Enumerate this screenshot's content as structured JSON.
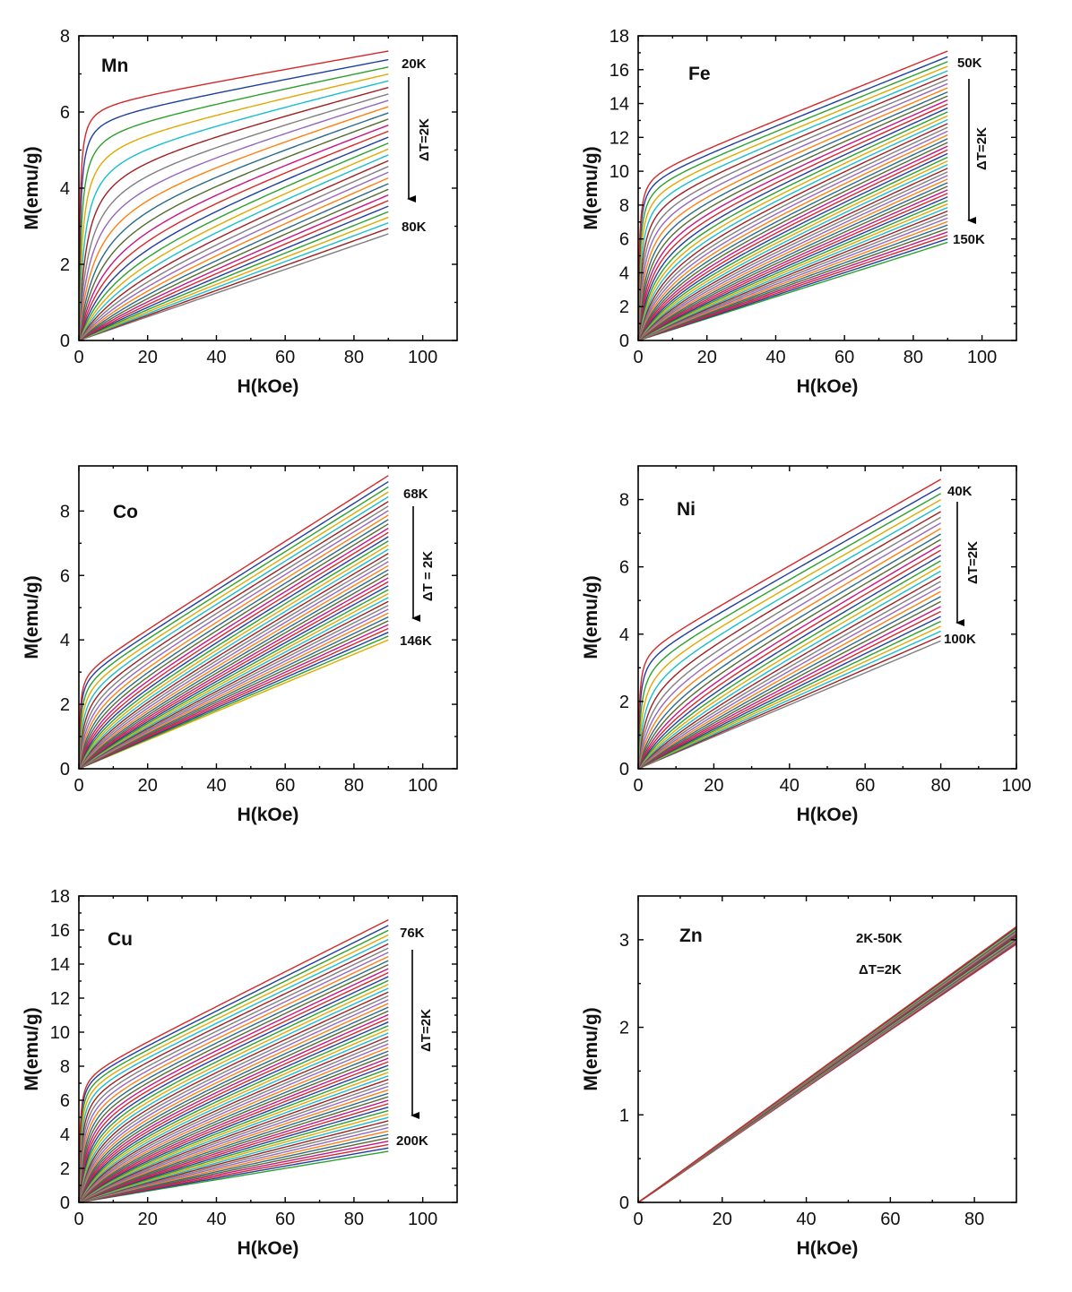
{
  "chart_data": [
    {
      "type": "line",
      "panel": "Mn",
      "xlabel": "H(kOe)",
      "ylabel": "M(emu/g)",
      "xlim": [
        0,
        110
      ],
      "ylim": [
        0,
        8
      ],
      "xticks": [
        "0",
        "20",
        "40",
        "60",
        "80",
        "100"
      ],
      "yticks": [
        "0",
        "2",
        "4",
        "6",
        "8"
      ],
      "x_max_data": 90,
      "temperature_range": [
        "20K",
        "80K"
      ],
      "step_label": "ΔT=2K",
      "num_curves": 31,
      "curve_top": {
        "temperature": "20K",
        "M_at_0": 6.2,
        "M_at_90": 7.6
      },
      "curve_bottom": {
        "temperature": "80K",
        "M_at_90": 2.8
      },
      "annotations": [
        "20K",
        "80K",
        "ΔT=2K"
      ]
    },
    {
      "type": "line",
      "panel": "Fe",
      "xlabel": "H(kOe)",
      "ylabel": "M(emu/g)",
      "xlim": [
        0,
        110
      ],
      "ylim": [
        0,
        18
      ],
      "xticks": [
        "0",
        "20",
        "40",
        "60",
        "80",
        "100"
      ],
      "yticks": [
        "0",
        "2",
        "4",
        "6",
        "8",
        "10",
        "12",
        "14",
        "16",
        "18"
      ],
      "x_max_data": 90,
      "temperature_range": [
        "50K",
        "150K"
      ],
      "step_label": "ΔT=2K",
      "num_curves": 51,
      "curve_top": {
        "temperature": "50K",
        "M_at_0": 9.8,
        "M_at_90": 17.1
      },
      "curve_bottom": {
        "temperature": "150K",
        "M_at_90": 5.8
      },
      "annotations": [
        "50K",
        "150K",
        "ΔT=2K"
      ]
    },
    {
      "type": "line",
      "panel": "Co",
      "xlabel": "H(kOe)",
      "ylabel": "M(emu/g)",
      "xlim": [
        0,
        110
      ],
      "ylim": [
        0,
        9.4
      ],
      "xticks": [
        "0",
        "20",
        "40",
        "60",
        "80",
        "100"
      ],
      "yticks": [
        "0",
        "2",
        "4",
        "6",
        "8"
      ],
      "x_max_data": 90,
      "temperature_range": [
        "68K",
        "146K"
      ],
      "step_label": "ΔT = 2K",
      "num_curves": 40,
      "curve_top": {
        "temperature": "68K",
        "M_at_0": 3.0,
        "M_at_90": 9.1
      },
      "curve_bottom": {
        "temperature": "146K",
        "M_at_90": 4.0
      },
      "annotations": [
        "68K",
        "146K",
        "ΔT = 2K"
      ]
    },
    {
      "type": "line",
      "panel": "Ni",
      "xlabel": "H(kOe)",
      "ylabel": "M(emu/g)",
      "xlim": [
        0,
        100
      ],
      "ylim": [
        0,
        9
      ],
      "xticks": [
        "0",
        "20",
        "40",
        "60",
        "80",
        "100"
      ],
      "yticks": [
        "0",
        "2",
        "4",
        "6",
        "8"
      ],
      "x_max_data": 80,
      "temperature_range": [
        "40K",
        "100K"
      ],
      "step_label": "ΔT=2K",
      "num_curves": 31,
      "curve_top": {
        "temperature": "40K",
        "M_at_0": 3.5,
        "M_at_80": 8.6
      },
      "curve_bottom": {
        "temperature": "100K",
        "M_at_80": 3.8
      },
      "annotations": [
        "40K",
        "100K",
        "ΔT=2K"
      ]
    },
    {
      "type": "line",
      "panel": "Cu",
      "xlabel": "H(kOe)",
      "ylabel": "M(emu/g)",
      "xlim": [
        0,
        110
      ],
      "ylim": [
        0,
        18
      ],
      "xticks": [
        "0",
        "20",
        "40",
        "60",
        "80",
        "100"
      ],
      "yticks": [
        "0",
        "2",
        "4",
        "6",
        "8",
        "10",
        "12",
        "14",
        "16",
        "18"
      ],
      "x_max_data": 90,
      "temperature_range": [
        "76K",
        "200K"
      ],
      "step_label": "ΔT=2K",
      "num_curves": 63,
      "curve_top": {
        "temperature": "76K",
        "M_at_0": 7.5,
        "M_at_90": 16.6
      },
      "curve_bottom": {
        "temperature": "200K",
        "M_at_90": 3.0
      },
      "annotations": [
        "76K",
        "200K",
        "ΔT=2K"
      ]
    },
    {
      "type": "line",
      "panel": "Zn",
      "xlabel": "H(kOe)",
      "ylabel": "M(emu/g)",
      "xlim": [
        0,
        90
      ],
      "ylim": [
        0,
        3.5
      ],
      "xticks": [
        "0",
        "20",
        "40",
        "60",
        "80"
      ],
      "yticks": [
        "0",
        "1",
        "2",
        "3"
      ],
      "x_max_data": 90,
      "temperature_range": [
        "2K",
        "50K"
      ],
      "step_label": "ΔT=2K",
      "num_curves": 25,
      "curve_top": {
        "temperature": "2K",
        "M_at_0": 0.0,
        "M_at_90": 3.15
      },
      "curve_bottom": {
        "temperature": "50K",
        "M_at_90": 2.95
      },
      "annotations": [
        "2K-50K",
        "ΔT=2K"
      ]
    }
  ],
  "colors": [
    "#d62728",
    "#1f3fa0",
    "#2ca02c",
    "#e0a800",
    "#17becf",
    "#a02020",
    "#7f7f7f",
    "#9467bd",
    "#ff7f0e",
    "#2a6a8a",
    "#556b2f",
    "#c71585"
  ],
  "axis_color": "#000000"
}
